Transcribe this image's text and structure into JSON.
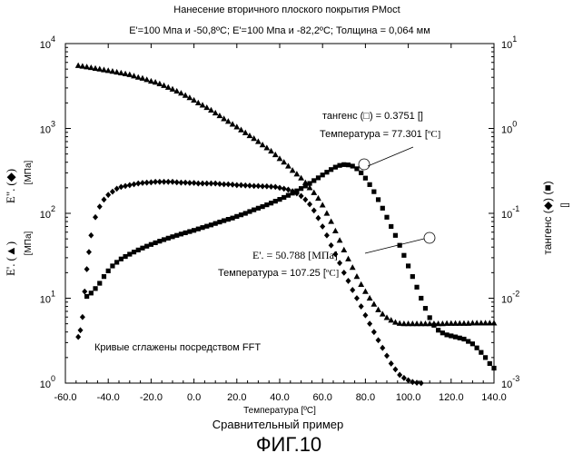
{
  "chart_data": {
    "type": "scatter",
    "title": "Нанесение вторичного плоского покрытия PMoct",
    "subtitle": "E'=100 Мпа и -50,8ºC; E'=100 Мпа и -82,2ºC; Толщина = 0,064 мм",
    "xlabel": "Температура [ºC]",
    "caption": "Сравнительный пример",
    "figure_label": "ФИГ.10",
    "note": "Кривые сглажены посредством FFT",
    "x_ticks": [
      "-60.0",
      "-40.0",
      "-20.0",
      "0.0",
      "20.0",
      "40.0",
      "60.0",
      "80.0",
      "100.0",
      "120.0",
      "140.0"
    ],
    "xlim": [
      -60,
      140
    ],
    "left_axis": {
      "scale": "log",
      "ylim": [
        1,
        10000
      ],
      "tick_mantissa": [
        "10",
        "10",
        "10",
        "10",
        "10"
      ],
      "tick_exponents": [
        "0",
        "1",
        "2",
        "3",
        "4"
      ],
      "label_upper": "E\".",
      "label_lower": "E'.",
      "unit_upper": "[МПа]",
      "unit_lower": "[МПа]"
    },
    "right_axis": {
      "scale": "log",
      "ylim": [
        0.001,
        10
      ],
      "tick_mantissa": [
        "10",
        "10",
        "10",
        "10",
        "10"
      ],
      "tick_exponents": [
        "-3",
        "-2",
        "-1",
        "0",
        "1"
      ],
      "label": "тангенс",
      "unit": "[]"
    },
    "annotations": {
      "tan_label": "тангенс (",
      "tan_value": ") = 0.3751 []",
      "tan_temp_label": "Температура = 77.301 [",
      "tan_temp_unit": "ºC]",
      "e_label": "E'. = 50.788 [МПа]",
      "e_temp_label": "Температура = 107.25 [",
      "e_temp_unit": "ºC]"
    },
    "series": [
      {
        "marker": "triangle",
        "axis": "left",
        "x": [
          -54,
          -52,
          -50,
          -48,
          -46,
          -44,
          -42,
          -40,
          -38,
          -36,
          -34,
          -32,
          -30,
          -28,
          -26,
          -24,
          -22,
          -20,
          -18,
          -16,
          -14,
          -12,
          -10,
          -8,
          -6,
          -4,
          -2,
          0,
          2,
          4,
          6,
          8,
          10,
          12,
          14,
          16,
          18,
          20,
          22,
          24,
          26,
          28,
          30,
          32,
          34,
          36,
          38,
          40,
          42,
          44,
          46,
          48,
          50,
          52,
          54,
          56,
          58,
          60,
          62,
          64,
          66,
          68,
          70,
          72,
          74,
          76,
          78,
          80,
          82,
          84,
          86,
          88,
          90,
          92,
          94,
          96,
          98,
          100,
          102,
          104,
          106,
          108,
          110,
          112,
          114,
          116,
          118,
          120,
          122,
          124,
          126,
          128,
          130,
          132,
          134,
          136,
          138,
          140
        ],
        "y": [
          5500,
          5400,
          5300,
          5200,
          5100,
          5000,
          4900,
          4800,
          4700,
          4600,
          4500,
          4400,
          4300,
          4150,
          4000,
          3900,
          3750,
          3600,
          3500,
          3350,
          3200,
          3050,
          2900,
          2750,
          2600,
          2450,
          2300,
          2150,
          2000,
          1880,
          1760,
          1640,
          1520,
          1410,
          1300,
          1210,
          1120,
          1040,
          960,
          890,
          820,
          760,
          700,
          640,
          590,
          540,
          490,
          440,
          400,
          360,
          320,
          290,
          260,
          230,
          200,
          175,
          150,
          125,
          100,
          80,
          62,
          48,
          37,
          29,
          23,
          18,
          14.5,
          12,
          10,
          8.5,
          7.3,
          6.5,
          5.9,
          5.5,
          5.2,
          5.05,
          5.0,
          5.0,
          5.0,
          5.0,
          5.0,
          5.0,
          5.0,
          5.0,
          5.0,
          5.0,
          5.05,
          5.05,
          5.05,
          5.05,
          5.05,
          5.05,
          5.1,
          5.1,
          5.1,
          5.1,
          5.1,
          5.1
        ]
      },
      {
        "marker": "diamond",
        "axis": "left",
        "x": [
          -54,
          -53,
          -52,
          -51,
          -50,
          -49,
          -48,
          -46,
          -44,
          -42,
          -40,
          -38,
          -36,
          -34,
          -32,
          -30,
          -28,
          -26,
          -24,
          -22,
          -20,
          -18,
          -16,
          -14,
          -12,
          -10,
          -8,
          -6,
          -4,
          -2,
          0,
          2,
          4,
          6,
          8,
          10,
          12,
          14,
          16,
          18,
          20,
          22,
          24,
          26,
          28,
          30,
          32,
          34,
          36,
          38,
          40,
          42,
          44,
          46,
          48,
          50,
          52,
          54,
          56,
          58,
          60,
          62,
          64,
          66,
          68,
          70,
          72,
          74,
          76,
          78,
          80,
          82,
          84,
          86,
          88,
          90,
          92,
          94,
          96,
          98,
          100,
          102,
          104,
          106
        ],
        "y": [
          3.5,
          4.2,
          6,
          12,
          22,
          35,
          55,
          90,
          120,
          145,
          165,
          180,
          195,
          205,
          210,
          215,
          220,
          225,
          228,
          230,
          232,
          235,
          235,
          235,
          235,
          235,
          232,
          230,
          230,
          228,
          228,
          225,
          225,
          225,
          225,
          225,
          222,
          220,
          220,
          218,
          215,
          215,
          213,
          212,
          210,
          210,
          208,
          208,
          206,
          205,
          200,
          195,
          190,
          182,
          172,
          160,
          145,
          128,
          108,
          88,
          70,
          55,
          42,
          33,
          26,
          20,
          16,
          12.5,
          10,
          8,
          6.3,
          5,
          4,
          3.2,
          2.6,
          2.1,
          1.7,
          1.45,
          1.25,
          1.15,
          1.08,
          1.03,
          1.01,
          1.0
        ]
      },
      {
        "marker": "square",
        "axis": "right",
        "x": [
          -50,
          -48,
          -46,
          -44,
          -42,
          -40,
          -38,
          -36,
          -34,
          -32,
          -30,
          -28,
          -26,
          -24,
          -22,
          -20,
          -18,
          -16,
          -14,
          -12,
          -10,
          -8,
          -6,
          -4,
          -2,
          0,
          2,
          4,
          6,
          8,
          10,
          12,
          14,
          16,
          18,
          20,
          22,
          24,
          26,
          28,
          30,
          32,
          34,
          36,
          38,
          40,
          42,
          44,
          46,
          48,
          50,
          52,
          54,
          56,
          58,
          60,
          62,
          64,
          66,
          68,
          70,
          72,
          74,
          76,
          78,
          80,
          82,
          84,
          86,
          88,
          90,
          92,
          94,
          96,
          98,
          100,
          102,
          104,
          106,
          108,
          110,
          112,
          114,
          116,
          118,
          120,
          122,
          124,
          126,
          128,
          130,
          132,
          134,
          136,
          138,
          140
        ],
        "y": [
          0.0105,
          0.0115,
          0.013,
          0.015,
          0.018,
          0.021,
          0.024,
          0.0265,
          0.029,
          0.031,
          0.033,
          0.035,
          0.037,
          0.039,
          0.041,
          0.043,
          0.045,
          0.047,
          0.049,
          0.051,
          0.053,
          0.055,
          0.057,
          0.059,
          0.061,
          0.063,
          0.0655,
          0.068,
          0.0705,
          0.073,
          0.076,
          0.079,
          0.082,
          0.085,
          0.088,
          0.092,
          0.096,
          0.1,
          0.105,
          0.11,
          0.115,
          0.12,
          0.126,
          0.132,
          0.139,
          0.146,
          0.154,
          0.163,
          0.173,
          0.184,
          0.196,
          0.21,
          0.225,
          0.243,
          0.262,
          0.283,
          0.305,
          0.328,
          0.35,
          0.367,
          0.375,
          0.372,
          0.36,
          0.335,
          0.3,
          0.26,
          0.218,
          0.18,
          0.145,
          0.115,
          0.09,
          0.07,
          0.055,
          0.042,
          0.032,
          0.024,
          0.018,
          0.0135,
          0.01,
          0.0076,
          0.0059,
          0.0048,
          0.0042,
          0.0039,
          0.0037,
          0.0036,
          0.0035,
          0.0034,
          0.0033,
          0.0031,
          0.0029,
          0.0026,
          0.0023,
          0.002,
          0.0017,
          0.0015
        ]
      }
    ]
  }
}
